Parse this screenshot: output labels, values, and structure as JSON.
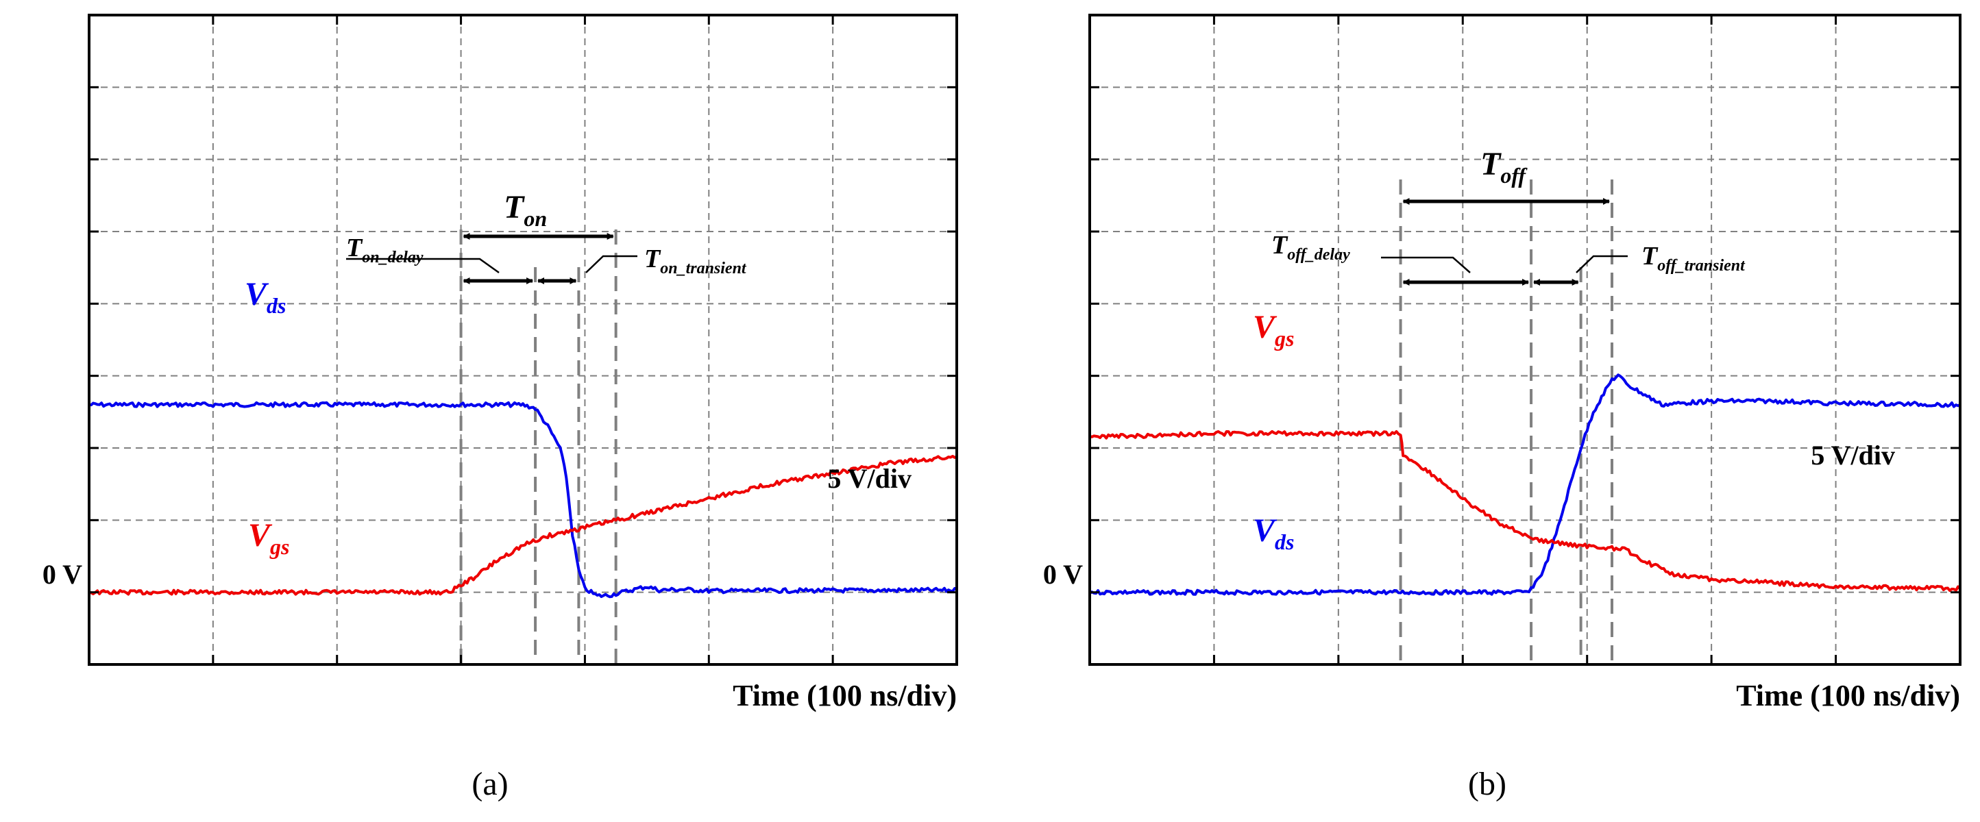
{
  "colors": {
    "vds": "#0000ee",
    "vgs": "#ee0000",
    "grid": "#808080",
    "frame": "#000000",
    "marker": "#808080"
  },
  "chart_data": [
    {
      "id": "a",
      "type": "line",
      "caption": "(a)",
      "xlabel": "Time (100 ns/div)",
      "scale_label": "5 V/div",
      "zero_label": "0 V",
      "grid": true,
      "xlim": [
        0,
        7
      ],
      "ylim": [
        -1,
        8
      ],
      "x_unit": "div (100 ns/div)",
      "y_unit": "div (5 V/div)",
      "series": [
        {
          "name": "Vds",
          "symbol": "V",
          "sub": "ds",
          "color_key": "vds",
          "points": [
            [
              0,
              2.6
            ],
            [
              3.5,
              2.6
            ],
            [
              3.6,
              2.55
            ],
            [
              3.7,
              2.3
            ],
            [
              3.8,
              2.0
            ],
            [
              3.85,
              1.6
            ],
            [
              3.9,
              0.8
            ],
            [
              3.95,
              0.3
            ],
            [
              4.0,
              0.05
            ],
            [
              4.1,
              -0.05
            ],
            [
              4.2,
              -0.04
            ],
            [
              4.5,
              0.08
            ],
            [
              4.6,
              0.03
            ],
            [
              4.8,
              0.04
            ],
            [
              5.0,
              0.02
            ],
            [
              7,
              0.03
            ]
          ]
        },
        {
          "name": "Vgs",
          "symbol": "V",
          "sub": "gs",
          "color_key": "vgs",
          "points": [
            [
              0,
              0
            ],
            [
              2.9,
              0
            ],
            [
              3.1,
              0.2
            ],
            [
              3.3,
              0.45
            ],
            [
              3.5,
              0.65
            ],
            [
              3.7,
              0.78
            ],
            [
              4.0,
              0.9
            ],
            [
              4.5,
              1.1
            ],
            [
              5.0,
              1.3
            ],
            [
              5.5,
              1.5
            ],
            [
              6.0,
              1.65
            ],
            [
              6.5,
              1.8
            ],
            [
              7,
              1.88
            ]
          ]
        }
      ],
      "markers": [
        3.0,
        3.6,
        3.95,
        4.25
      ],
      "annotations": {
        "total": {
          "symbol": "T",
          "sub": "on"
        },
        "delay": {
          "symbol": "T",
          "sub": "on_delay"
        },
        "transient": {
          "symbol": "T",
          "sub": "on_transient"
        }
      }
    },
    {
      "id": "b",
      "type": "line",
      "caption": "(b)",
      "xlabel": "Time (100 ns/div)",
      "scale_label": "5 V/div",
      "zero_label": "0 V",
      "grid": true,
      "xlim": [
        0,
        7
      ],
      "ylim": [
        -1,
        8
      ],
      "x_unit": "div (100 ns/div)",
      "y_unit": "div (5 V/div)",
      "series": [
        {
          "name": "Vds",
          "symbol": "V",
          "sub": "ds",
          "color_key": "vds",
          "points": [
            [
              0,
              0
            ],
            [
              3.5,
              0
            ],
            [
              3.55,
              0.05
            ],
            [
              3.65,
              0.3
            ],
            [
              3.75,
              0.8
            ],
            [
              3.85,
              1.4
            ],
            [
              3.95,
              2.0
            ],
            [
              4.05,
              2.5
            ],
            [
              4.2,
              2.95
            ],
            [
              4.25,
              3.0
            ],
            [
              4.35,
              2.85
            ],
            [
              4.6,
              2.6
            ],
            [
              5.0,
              2.65
            ],
            [
              5.5,
              2.65
            ],
            [
              6.0,
              2.62
            ],
            [
              7,
              2.6
            ]
          ]
        },
        {
          "name": "Vgs",
          "symbol": "V",
          "sub": "gs",
          "color_key": "vgs",
          "points": [
            [
              0,
              2.15
            ],
            [
              1.0,
              2.2
            ],
            [
              2.0,
              2.2
            ],
            [
              2.5,
              2.2
            ],
            [
              2.52,
              1.9
            ],
            [
              2.7,
              1.7
            ],
            [
              3.0,
              1.3
            ],
            [
              3.3,
              0.95
            ],
            [
              3.6,
              0.72
            ],
            [
              3.9,
              0.65
            ],
            [
              4.3,
              0.6
            ],
            [
              4.5,
              0.4
            ],
            [
              4.7,
              0.25
            ],
            [
              5.0,
              0.18
            ],
            [
              6.0,
              0.08
            ],
            [
              7,
              0.05
            ]
          ]
        }
      ],
      "markers": [
        2.5,
        3.55,
        3.95,
        4.2
      ],
      "annotations": {
        "total": {
          "symbol": "T",
          "sub": "off"
        },
        "delay": {
          "symbol": "T",
          "sub": "off_delay"
        },
        "transient": {
          "symbol": "T",
          "sub": "off_transient"
        }
      }
    }
  ]
}
